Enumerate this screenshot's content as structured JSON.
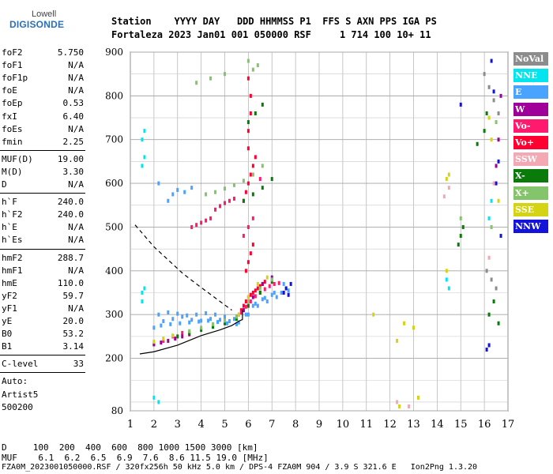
{
  "logo": {
    "top": "Lowell",
    "main": "DIGISONDE"
  },
  "header": {
    "row1": "Station    YYYY DAY   DDD HHMMSS P1  FFS S AXN PPS IGA PS",
    "row2": "Fortaleza 2023 Jan01 001 050000 RSF     1 714 100 10+ 11"
  },
  "params": {
    "group1": [
      {
        "label": "foF2",
        "value": "5.750"
      },
      {
        "label": "foF1",
        "value": "N/A"
      },
      {
        "label": "foF1p",
        "value": "N/A"
      },
      {
        "label": "foE",
        "value": "N/A"
      },
      {
        "label": "foEp",
        "value": "0.53"
      },
      {
        "label": "fxI",
        "value": "6.40"
      },
      {
        "label": "foEs",
        "value": "N/A"
      },
      {
        "label": "fmin",
        "value": "2.25"
      }
    ],
    "group2": [
      {
        "label": "MUF(D)",
        "value": "19.00"
      },
      {
        "label": "M(D)",
        "value": "3.30"
      },
      {
        "label": "D",
        "value": "N/A"
      }
    ],
    "group3": [
      {
        "label": "h`F",
        "value": "240.0"
      },
      {
        "label": "h`F2",
        "value": "240.0"
      },
      {
        "label": "h`E",
        "value": "N/A"
      },
      {
        "label": "h`Es",
        "value": "N/A"
      }
    ],
    "group4": [
      {
        "label": "hmF2",
        "value": "288.7"
      },
      {
        "label": "hmF1",
        "value": "N/A"
      },
      {
        "label": "hmE",
        "value": "110.0"
      },
      {
        "label": "yF2",
        "value": "59.7"
      },
      {
        "label": "yF1",
        "value": "N/A"
      },
      {
        "label": "yE",
        "value": "20.0"
      },
      {
        "label": "B0",
        "value": "53.2"
      },
      {
        "label": "B1",
        "value": "3.14"
      }
    ],
    "clevel": {
      "label": "C-level",
      "value": "33"
    },
    "auto": [
      "Auto:",
      "Artist5",
      "500200"
    ]
  },
  "legend": [
    {
      "label": "NoVal",
      "color": "#8c8c8c"
    },
    {
      "label": "NNE",
      "color": "#00e5ee"
    },
    {
      "label": "E",
      "color": "#4aa3ff"
    },
    {
      "label": "W",
      "color": "#a0009a"
    },
    {
      "label": "Vo-",
      "color": "#ff1a6e"
    },
    {
      "label": "Vo+",
      "color": "#ff0030"
    },
    {
      "label": "SSW",
      "color": "#f4a8b4"
    },
    {
      "label": "X-",
      "color": "#0a7a0a"
    },
    {
      "label": "X+",
      "color": "#84c46a"
    },
    {
      "label": "SSE",
      "color": "#d4d414"
    },
    {
      "label": "NNW",
      "color": "#1414d8"
    }
  ],
  "footer": {
    "d_row": "D     100  200  400  600  800 1000 1500 3000 [km]",
    "muf_row": "MUF    6.1  6.2  6.5  6.9  7.6  8.6 11.5 19.0 [MHz]",
    "file_row": "FZA0M_2023001050000.RSF / 320fx256h 50 kHz 5.0 km / DPS-4 FZA0M 904 / 3.9 S 321.6 E   Ion2Png 1.3.20"
  },
  "chart_data": {
    "type": "scatter",
    "title": "",
    "xlabel": "",
    "ylabel": "",
    "xlim": [
      1,
      17
    ],
    "ylim": [
      80,
      900
    ],
    "xticks": [
      1,
      2,
      3,
      4,
      5,
      6,
      7,
      8,
      9,
      10,
      11,
      12,
      13,
      14,
      15,
      16,
      17
    ],
    "yticks": [
      80,
      200,
      300,
      400,
      500,
      600,
      700,
      800,
      900
    ],
    "grid": true,
    "legend_position": "right",
    "profile_solid": {
      "x": [
        1.4,
        2.0,
        3.0,
        4.0,
        4.8,
        5.3,
        5.6,
        5.75,
        5.75
      ],
      "y": [
        210,
        215,
        230,
        252,
        265,
        275,
        285,
        288.7,
        310
      ]
    },
    "profile_dashed": {
      "x": [
        1.2,
        1.6,
        2.0,
        2.6,
        3.2,
        3.8,
        4.3,
        4.8,
        5.3
      ],
      "y": [
        505,
        480,
        455,
        425,
        395,
        370,
        350,
        330,
        310
      ]
    },
    "series": [
      {
        "name": "E",
        "color": "#4aa3ff",
        "x": [
          2.2,
          2.6,
          3.0,
          3.4,
          3.8,
          4.2,
          4.6,
          5.0,
          5.4,
          5.8,
          6.2,
          6.6,
          7.0,
          7.4,
          7.7,
          2.4,
          2.8,
          3.2,
          3.6,
          4.0,
          4.4,
          4.8,
          5.2,
          5.6,
          6.0,
          6.4,
          6.8,
          7.2,
          7.6,
          2.0,
          2.3,
          2.7,
          3.1,
          3.5,
          3.9,
          4.3,
          4.7,
          5.1,
          5.5,
          5.9,
          6.3,
          6.7,
          7.1,
          7.5,
          2.6,
          2.8,
          3.0,
          3.3,
          3.6,
          2.2
        ],
        "y": [
          300,
          305,
          302,
          298,
          300,
          303,
          300,
          295,
          290,
          310,
          320,
          335,
          345,
          350,
          355,
          285,
          290,
          295,
          288,
          286,
          290,
          288,
          285,
          282,
          300,
          320,
          330,
          340,
          360,
          270,
          275,
          278,
          280,
          282,
          284,
          286,
          283,
          280,
          278,
          300,
          325,
          338,
          350,
          370,
          560,
          575,
          585,
          580,
          590,
          600
        ]
      },
      {
        "name": "NNE",
        "color": "#00e5ee",
        "x": [
          1.5,
          1.5,
          1.6,
          1.5,
          1.6,
          2.0,
          2.2,
          1.5,
          1.6,
          14.4,
          14.5,
          16.2,
          16.3
        ],
        "y": [
          330,
          350,
          360,
          640,
          660,
          110,
          100,
          700,
          720,
          380,
          360,
          520,
          560
        ]
      },
      {
        "name": "Vo+",
        "color": "#ff0030",
        "x": [
          5.6,
          5.7,
          5.8,
          5.9,
          6.0,
          6.1,
          6.2,
          6.3,
          6.4,
          6.5,
          6.6,
          6.7,
          5.9,
          6.0,
          6.1,
          6.2,
          5.8,
          5.9,
          6.0,
          6.1,
          6.2,
          6.3,
          6.0,
          6.0,
          6.1,
          6.1,
          6.0
        ],
        "y": [
          300,
          310,
          320,
          330,
          340,
          345,
          350,
          355,
          360,
          365,
          370,
          375,
          400,
          420,
          440,
          460,
          560,
          580,
          600,
          620,
          640,
          660,
          680,
          720,
          760,
          800,
          840
        ]
      },
      {
        "name": "Vo-",
        "color": "#ff1a6e",
        "x": [
          5.5,
          5.7,
          5.9,
          6.1,
          6.3,
          6.5,
          6.7,
          6.9,
          7.1,
          7.3,
          5.8,
          6.0,
          6.2,
          4.6,
          4.8,
          5.0,
          5.2,
          5.4,
          3.6,
          3.8,
          4.0,
          4.2,
          4.4,
          2.0,
          2.4,
          2.8,
          3.2,
          6.5
        ],
        "y": [
          295,
          305,
          318,
          330,
          342,
          350,
          358,
          365,
          370,
          372,
          480,
          500,
          520,
          540,
          548,
          555,
          560,
          565,
          500,
          505,
          510,
          515,
          520,
          232,
          240,
          250,
          258,
          610
        ]
      },
      {
        "name": "W",
        "color": "#a0009a",
        "x": [
          2.0,
          2.3,
          2.6,
          2.9,
          3.2,
          3.5,
          5.8,
          6.2,
          6.6,
          7.0,
          16.5,
          16.6,
          16.7
        ],
        "y": [
          232,
          236,
          240,
          245,
          250,
          255,
          310,
          340,
          370,
          385,
          640,
          700,
          800
        ]
      },
      {
        "name": "X-",
        "color": "#0a7a0a",
        "x": [
          3.0,
          3.5,
          4.0,
          4.5,
          5.0,
          5.5,
          6.0,
          6.5,
          7.0,
          5.8,
          6.2,
          6.6,
          7.0,
          6.0,
          6.3,
          6.6,
          14.9,
          15.0,
          15.1,
          15.7,
          16.0,
          16.2,
          16.4,
          16.6,
          16.1
        ],
        "y": [
          250,
          258,
          265,
          272,
          280,
          290,
          320,
          350,
          375,
          560,
          575,
          590,
          610,
          740,
          760,
          780,
          460,
          480,
          500,
          690,
          720,
          300,
          330,
          280,
          760
        ]
      },
      {
        "name": "X+",
        "color": "#84c46a",
        "x": [
          3.5,
          4.0,
          4.5,
          5.0,
          5.5,
          6.0,
          6.5,
          7.0,
          4.2,
          4.6,
          5.0,
          5.4,
          5.8,
          6.2,
          6.6,
          3.8,
          4.4,
          5.0,
          6.0,
          6.2,
          6.4,
          15.0,
          16.3,
          16.5
        ],
        "y": [
          262,
          270,
          278,
          286,
          295,
          330,
          360,
          380,
          575,
          580,
          588,
          596,
          606,
          620,
          640,
          830,
          840,
          850,
          880,
          860,
          870,
          520,
          500,
          740
        ]
      },
      {
        "name": "SSE",
        "color": "#d4d414",
        "x": [
          2.0,
          2.4,
          2.8,
          5.6,
          6.0,
          6.4,
          6.8,
          11.3,
          12.3,
          12.6,
          13.0,
          14.4,
          14.4,
          16.3,
          16.6,
          12.4,
          13.2,
          14.5,
          16.2
        ],
        "y": [
          238,
          245,
          252,
          300,
          340,
          370,
          385,
          300,
          240,
          280,
          270,
          400,
          610,
          700,
          560,
          90,
          110,
          620,
          750
        ]
      },
      {
        "name": "SSW",
        "color": "#f4a8b4",
        "x": [
          14.3,
          14.5,
          16.2,
          12.3,
          12.8,
          16.4
        ],
        "y": [
          570,
          590,
          430,
          100,
          90,
          600
        ]
      },
      {
        "name": "NNW",
        "color": "#1414d8",
        "x": [
          7.5,
          7.6,
          7.7,
          7.8,
          16.1,
          16.2,
          16.5,
          16.6,
          16.4,
          15.0,
          16.3,
          16.7
        ],
        "y": [
          350,
          360,
          345,
          370,
          220,
          230,
          600,
          650,
          810,
          780,
          880,
          480
        ]
      },
      {
        "name": "NoVal",
        "color": "#8c8c8c",
        "x": [
          16.0,
          16.2,
          16.4,
          16.6,
          16.1,
          16.3,
          16.5
        ],
        "y": [
          850,
          820,
          790,
          760,
          400,
          380,
          360
        ]
      }
    ]
  }
}
